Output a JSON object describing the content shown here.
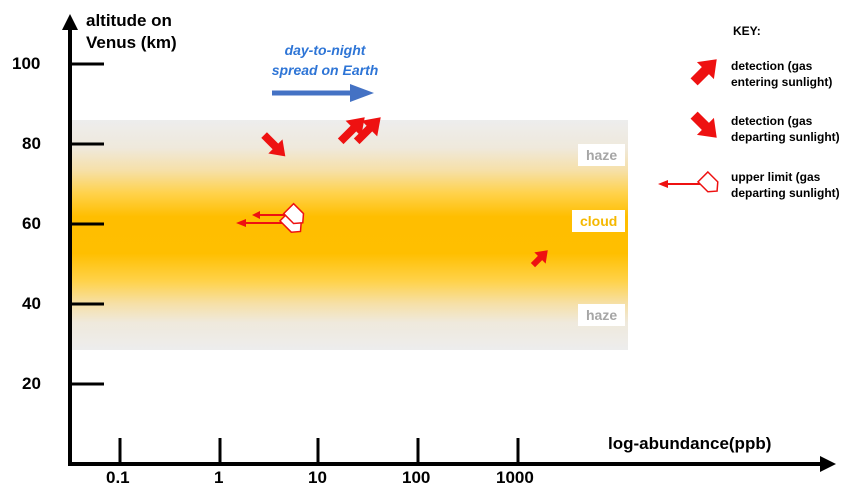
{
  "axes": {
    "y_title_line1": "altitude on",
    "y_title_line2": "Venus (km)",
    "x_title": "log-abundance(ppb)",
    "y_ticks": [
      "100",
      "80",
      "60",
      "40",
      "20"
    ],
    "x_ticks": [
      "0.1",
      "1",
      "10",
      "100",
      "1000"
    ]
  },
  "bands": {
    "haze_upper": "haze",
    "cloud": "cloud",
    "haze_lower": "haze"
  },
  "earth_note": {
    "line1": "day-to-night",
    "line2": "spread on Earth"
  },
  "key": {
    "title": "KEY:",
    "entering": "detection (gas entering sunlight)",
    "departing": "detection (gas departing sunlight)",
    "upper_limit": "upper limit (gas departing sunlight)"
  },
  "colors": {
    "detection": "#ee1111",
    "earth_arrow": "#4472c4",
    "cloud_label": "#f5b800",
    "haze_label": "#a6a6a6"
  }
}
